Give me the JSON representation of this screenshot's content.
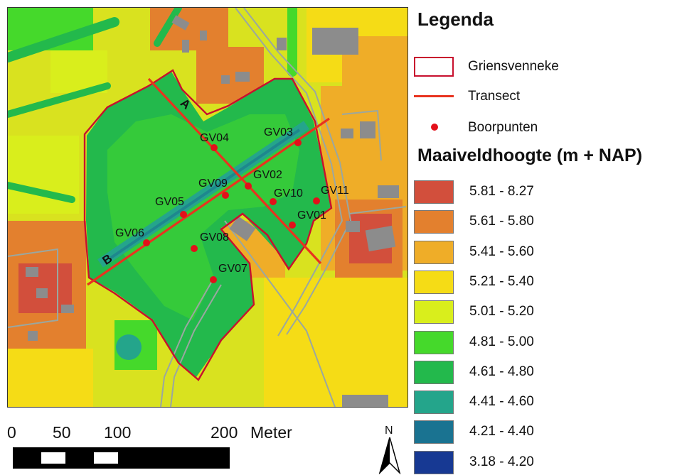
{
  "map": {
    "transect_labels": {
      "a": "A",
      "b": "B"
    },
    "points": [
      {
        "id": "GV01"
      },
      {
        "id": "GV02"
      },
      {
        "id": "GV03"
      },
      {
        "id": "GV04"
      },
      {
        "id": "GV05"
      },
      {
        "id": "GV06"
      },
      {
        "id": "GV07"
      },
      {
        "id": "GV08"
      },
      {
        "id": "GV09"
      },
      {
        "id": "GV10"
      },
      {
        "id": "GV11"
      }
    ]
  },
  "legend": {
    "title": "Legenda",
    "griensvenneke": "Griensvenneke",
    "transect": "Transect",
    "boorpunten": "Boorpunten",
    "elevation_title": "Maaiveldhoogte (m + NAP)",
    "classes": [
      {
        "label": "5.81 - 8.27",
        "color": "#d24f3c"
      },
      {
        "label": "5.61 - 5.80",
        "color": "#e3802e"
      },
      {
        "label": "5.41 - 5.60",
        "color": "#efad28"
      },
      {
        "label": "5.21 - 5.40",
        "color": "#f5dc16"
      },
      {
        "label": "5.01 - 5.20",
        "color": "#d9ee1c"
      },
      {
        "label": "4.81 - 5.00",
        "color": "#45d92b"
      },
      {
        "label": "4.61 - 4.80",
        "color": "#23b94c"
      },
      {
        "label": "4.41 - 4.60",
        "color": "#24a58b"
      },
      {
        "label": "4.21 - 4.40",
        "color": "#1a7391"
      },
      {
        "label": "3.18 - 4.20",
        "color": "#173993"
      }
    ],
    "boundary_color": "#c8102e",
    "transect_color": "#e8331f",
    "point_color": "#e3101a"
  },
  "scale": {
    "ticks": [
      "0",
      "50",
      "100",
      "200"
    ],
    "unit": "Meter"
  },
  "north": "N"
}
